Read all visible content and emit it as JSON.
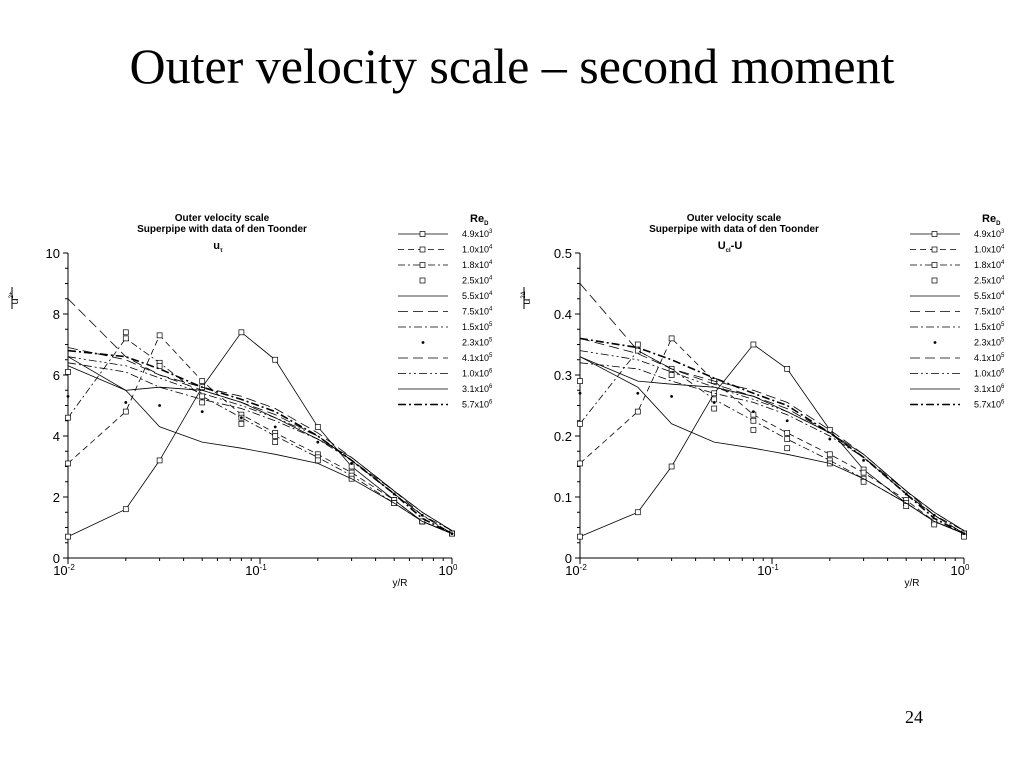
{
  "slide": {
    "title": "Outer velocity scale – second moment",
    "page_number": "24"
  },
  "legend_series": [
    {
      "base": "4.9x10",
      "exp": "3",
      "style": "solid-square"
    },
    {
      "base": "1.0x10",
      "exp": "4",
      "style": "dash-square"
    },
    {
      "base": "1.8x10",
      "exp": "4",
      "style": "dashdot-square"
    },
    {
      "base": "2.5x10",
      "exp": "4",
      "style": "square"
    },
    {
      "base": "5.5x10",
      "exp": "4",
      "style": "solid"
    },
    {
      "base": "7.5x10",
      "exp": "4",
      "style": "longdash"
    },
    {
      "base": "1.5x10",
      "exp": "5",
      "style": "dashdot"
    },
    {
      "base": "2.3x10",
      "exp": "5",
      "style": "dot"
    },
    {
      "base": "4.1x10",
      "exp": "5",
      "style": "longdash"
    },
    {
      "base": "1.0x10",
      "exp": "6",
      "style": "dashdotdot"
    },
    {
      "base": "3.1x10",
      "exp": "6",
      "style": "solid"
    },
    {
      "base": "5.7x10",
      "exp": "6",
      "style": "dashdot-bold"
    }
  ],
  "chart_data": [
    {
      "type": "line",
      "title": "Outer velocity scale",
      "subtitle": "Superpipe with data of den Toonder",
      "annotation": {
        "base": "u",
        "sub": "τ"
      },
      "legend_title": {
        "base": "Re",
        "sub": "D"
      },
      "ylabel": {
        "base": "u",
        "sup": "2+"
      },
      "xlabel": "y/R",
      "xscale": "log",
      "xlim": [
        0.01,
        1
      ],
      "ylim": [
        0,
        10
      ],
      "y_ticks": [
        "0",
        "2",
        "4",
        "6",
        "8",
        "10"
      ],
      "x_ticks": [
        {
          "base": "10",
          "exp": "-2"
        },
        {
          "base": "10",
          "exp": "-1"
        },
        {
          "base": "10",
          "exp": "0"
        }
      ],
      "x": [
        0.01,
        0.02,
        0.03,
        0.05,
        0.08,
        0.12,
        0.2,
        0.3,
        0.5,
        0.7,
        1.0
      ],
      "series": [
        {
          "values": [
            0.7,
            1.6,
            3.2,
            5.6,
            7.4,
            6.5,
            4.3,
            3.0,
            1.9,
            1.2,
            0.8
          ]
        },
        {
          "values": [
            3.1,
            4.8,
            7.3,
            5.8,
            4.7,
            4.1,
            3.4,
            2.8,
            1.9,
            1.2,
            0.8
          ]
        },
        {
          "values": [
            4.6,
            7.2,
            6.4,
            5.3,
            4.6,
            4.0,
            3.3,
            2.7,
            1.8,
            1.2,
            0.8
          ]
        },
        {
          "values": [
            6.1,
            7.4,
            6.3,
            5.1,
            4.4,
            3.8,
            3.2,
            2.6,
            1.8,
            1.2,
            0.8
          ]
        },
        {
          "values": [
            6.3,
            5.5,
            5.6,
            5.5,
            5.1,
            4.6,
            3.9,
            3.3,
            2.2,
            1.5,
            0.9
          ]
        },
        {
          "values": [
            8.5,
            6.6,
            6.0,
            5.6,
            5.3,
            4.9,
            4.1,
            3.3,
            2.2,
            1.5,
            0.9
          ]
        },
        {
          "values": [
            6.4,
            6.1,
            5.6,
            5.2,
            4.9,
            4.5,
            3.9,
            3.2,
            2.1,
            1.4,
            0.9
          ]
        },
        {
          "values": [
            5.3,
            5.1,
            5.0,
            4.8,
            4.6,
            4.3,
            3.8,
            3.1,
            2.1,
            1.4,
            0.8
          ]
        },
        {
          "values": [
            6.9,
            6.5,
            6.0,
            5.5,
            5.1,
            4.7,
            4.0,
            3.2,
            2.2,
            1.4,
            0.8
          ]
        },
        {
          "values": [
            6.6,
            6.3,
            5.9,
            5.4,
            5.0,
            4.6,
            4.0,
            3.2,
            2.1,
            1.4,
            0.8
          ]
        },
        {
          "values": [
            6.6,
            5.5,
            4.3,
            3.8,
            3.6,
            3.4,
            3.1,
            2.6,
            1.8,
            1.2,
            0.8
          ]
        },
        {
          "values": [
            6.8,
            6.6,
            6.2,
            5.6,
            5.2,
            4.8,
            4.0,
            3.2,
            2.1,
            1.3,
            0.8
          ]
        }
      ]
    },
    {
      "type": "line",
      "title": "Outer velocity scale",
      "subtitle": "Superpipe with data of den Toonder",
      "annotation": {
        "base": "U",
        "sub": "cl",
        "tail": "-U"
      },
      "legend_title": {
        "base": "Re",
        "sub": "D"
      },
      "ylabel": {
        "base": "u",
        "sup": "2Δ"
      },
      "xlabel": "y/R",
      "xscale": "log",
      "xlim": [
        0.01,
        1
      ],
      "ylim": [
        0,
        0.5
      ],
      "y_ticks": [
        "0",
        "0.1",
        "0.2",
        "0.3",
        "0.4",
        "0.5"
      ],
      "x_ticks": [
        {
          "base": "10",
          "exp": "-2"
        },
        {
          "base": "10",
          "exp": "-1"
        },
        {
          "base": "10",
          "exp": "0"
        }
      ],
      "x": [
        0.01,
        0.02,
        0.03,
        0.05,
        0.08,
        0.12,
        0.2,
        0.3,
        0.5,
        0.7,
        1.0
      ],
      "series": [
        {
          "values": [
            0.035,
            0.075,
            0.15,
            0.27,
            0.35,
            0.31,
            0.21,
            0.145,
            0.09,
            0.06,
            0.04
          ]
        },
        {
          "values": [
            0.155,
            0.24,
            0.36,
            0.29,
            0.235,
            0.205,
            0.17,
            0.14,
            0.095,
            0.06,
            0.04
          ]
        },
        {
          "values": [
            0.22,
            0.34,
            0.31,
            0.26,
            0.225,
            0.195,
            0.16,
            0.13,
            0.09,
            0.06,
            0.04
          ]
        },
        {
          "values": [
            0.29,
            0.35,
            0.3,
            0.245,
            0.21,
            0.18,
            0.155,
            0.125,
            0.085,
            0.055,
            0.035
          ]
        },
        {
          "values": [
            0.33,
            0.29,
            0.285,
            0.28,
            0.265,
            0.24,
            0.205,
            0.17,
            0.11,
            0.075,
            0.045
          ]
        },
        {
          "values": [
            0.45,
            0.34,
            0.31,
            0.29,
            0.275,
            0.255,
            0.21,
            0.17,
            0.11,
            0.075,
            0.045
          ]
        },
        {
          "values": [
            0.32,
            0.31,
            0.29,
            0.27,
            0.255,
            0.235,
            0.2,
            0.165,
            0.105,
            0.07,
            0.045
          ]
        },
        {
          "values": [
            0.27,
            0.27,
            0.265,
            0.255,
            0.24,
            0.225,
            0.195,
            0.16,
            0.105,
            0.07,
            0.04
          ]
        },
        {
          "values": [
            0.36,
            0.335,
            0.31,
            0.285,
            0.265,
            0.245,
            0.205,
            0.165,
            0.11,
            0.07,
            0.04
          ]
        },
        {
          "values": [
            0.34,
            0.325,
            0.305,
            0.28,
            0.26,
            0.24,
            0.205,
            0.165,
            0.105,
            0.07,
            0.04
          ]
        },
        {
          "values": [
            0.33,
            0.28,
            0.22,
            0.19,
            0.18,
            0.17,
            0.155,
            0.13,
            0.09,
            0.06,
            0.04
          ]
        },
        {
          "values": [
            0.36,
            0.345,
            0.325,
            0.295,
            0.27,
            0.25,
            0.205,
            0.165,
            0.105,
            0.065,
            0.04
          ]
        }
      ]
    }
  ]
}
